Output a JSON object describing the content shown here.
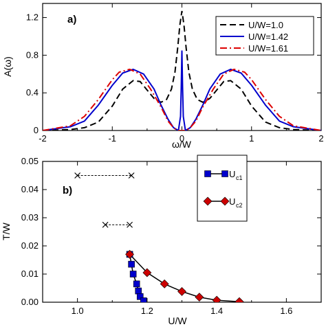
{
  "chart_data": [
    {
      "type": "line",
      "panel_label": "a)",
      "xlabel": "ω/W",
      "ylabel": "A(ω)",
      "xlim": [
        -2,
        2
      ],
      "ylim": [
        0,
        1.35
      ],
      "xticks": [
        "-2",
        "-1",
        "0",
        "1",
        "2"
      ],
      "yticks": [
        "0",
        "0.4",
        "0.8",
        "1.2"
      ],
      "legend_position": "top-right",
      "series": [
        {
          "name": "U/W=1.0",
          "color": "#000000",
          "dash": "dashed",
          "x": [
            -2.0,
            -1.6,
            -1.4,
            -1.2,
            -1.0,
            -0.85,
            -0.7,
            -0.6,
            -0.5,
            -0.4,
            -0.3,
            -0.22,
            -0.15,
            -0.1,
            -0.06,
            -0.03,
            0.0,
            0.03,
            0.06,
            0.1,
            0.15,
            0.22,
            0.3,
            0.4,
            0.5,
            0.6,
            0.7,
            0.85,
            1.0,
            1.2,
            1.4,
            1.6,
            2.0
          ],
          "y": [
            0.0,
            0.01,
            0.03,
            0.09,
            0.26,
            0.44,
            0.53,
            0.52,
            0.43,
            0.34,
            0.3,
            0.33,
            0.44,
            0.62,
            0.88,
            1.12,
            1.27,
            1.12,
            0.88,
            0.62,
            0.44,
            0.33,
            0.3,
            0.34,
            0.43,
            0.52,
            0.53,
            0.44,
            0.26,
            0.09,
            0.03,
            0.01,
            0.0
          ]
        },
        {
          "name": "U/W=1.42",
          "color": "#0000cc",
          "dash": "solid",
          "x": [
            -2.0,
            -1.6,
            -1.4,
            -1.2,
            -1.0,
            -0.85,
            -0.7,
            -0.55,
            -0.4,
            -0.3,
            -0.2,
            -0.12,
            -0.05,
            -0.02,
            -0.01,
            0.0,
            0.01,
            0.02,
            0.05,
            0.12,
            0.2,
            0.3,
            0.4,
            0.55,
            0.7,
            0.85,
            1.0,
            1.2,
            1.4,
            1.6,
            2.0
          ],
          "y": [
            0.0,
            0.04,
            0.1,
            0.27,
            0.48,
            0.61,
            0.65,
            0.6,
            0.44,
            0.27,
            0.12,
            0.03,
            0.0,
            0.15,
            0.45,
            0.85,
            0.45,
            0.15,
            0.0,
            0.03,
            0.12,
            0.27,
            0.44,
            0.6,
            0.65,
            0.61,
            0.48,
            0.27,
            0.1,
            0.04,
            0.0
          ]
        },
        {
          "name": "U/W=1.61",
          "color": "#dd0000",
          "dash": "dash-dot",
          "x": [
            -2.0,
            -1.6,
            -1.4,
            -1.2,
            -1.0,
            -0.9,
            -0.75,
            -0.6,
            -0.45,
            -0.3,
            -0.2,
            -0.12,
            -0.06,
            0.0,
            0.06,
            0.12,
            0.2,
            0.3,
            0.45,
            0.6,
            0.75,
            0.9,
            1.0,
            1.2,
            1.4,
            1.6,
            2.0
          ],
          "y": [
            0.0,
            0.05,
            0.15,
            0.33,
            0.54,
            0.62,
            0.65,
            0.6,
            0.44,
            0.25,
            0.1,
            0.03,
            0.0,
            0.0,
            0.0,
            0.03,
            0.1,
            0.25,
            0.44,
            0.6,
            0.65,
            0.62,
            0.54,
            0.33,
            0.15,
            0.05,
            0.0
          ]
        }
      ]
    },
    {
      "type": "scatter",
      "panel_label": "b)",
      "xlabel": "U/W",
      "ylabel": "T/W",
      "xlim": [
        0.9,
        1.7
      ],
      "ylim": [
        0,
        0.05
      ],
      "xticks": [
        "1.0",
        "1.2",
        "1.4",
        "1.6"
      ],
      "yticks": [
        "0.00",
        "0.01",
        "0.02",
        "0.03",
        "0.04",
        "0.05"
      ],
      "legend_position": "top-right",
      "series": [
        {
          "name": "U",
          "subscript": "c1",
          "color": "#0000cc",
          "marker": "square",
          "x": [
            1.15,
            1.155,
            1.16,
            1.17,
            1.175,
            1.18,
            1.19
          ],
          "y": [
            0.017,
            0.0135,
            0.01,
            0.0065,
            0.004,
            0.002,
            0.0005
          ]
        },
        {
          "name": "U",
          "subscript": "c2",
          "color": "#cc0000",
          "marker": "diamond",
          "x": [
            1.15,
            1.2,
            1.25,
            1.3,
            1.35,
            1.4,
            1.465
          ],
          "y": [
            0.017,
            0.0105,
            0.0065,
            0.0038,
            0.0018,
            0.0007,
            0.0002
          ]
        }
      ],
      "crossover_lines": [
        {
          "x": [
            1.0,
            1.155
          ],
          "y": [
            0.045,
            0.045
          ]
        },
        {
          "x": [
            1.08,
            1.15
          ],
          "y": [
            0.0275,
            0.0275
          ]
        }
      ]
    }
  ]
}
